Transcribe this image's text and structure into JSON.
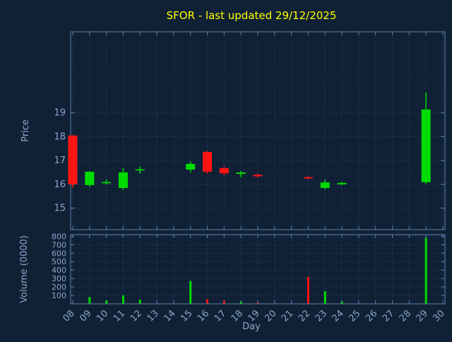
{
  "title": "SFOR - last updated 29/12/2025",
  "colors": {
    "background": "#102136",
    "grid": "#2d4b6d",
    "axis": "#5b82ab",
    "text": "#8aa6c9",
    "title": "#ffff00",
    "up": "#00dc00",
    "down": "#ff1414"
  },
  "chart_data": {
    "type": "candlestick",
    "title": "SFOR - last updated 29/12/2025",
    "xlabel": "Day",
    "ylabel": "Price",
    "volume_ylabel": "Volume (0000)",
    "x_ticks": [
      "08",
      "09",
      "10",
      "11",
      "12",
      "13",
      "14",
      "15",
      "16",
      "17",
      "18",
      "19",
      "20",
      "21",
      "22",
      "23",
      "24",
      "25",
      "26",
      "27",
      "28",
      "29",
      "30"
    ],
    "price_ticks": [
      15,
      16,
      17,
      18,
      19
    ],
    "volume_ticks": [
      100,
      200,
      300,
      400,
      500,
      600,
      700,
      800
    ],
    "day_axis_range": [
      7.874,
      30.126
    ],
    "price_axis_range": [
      14.1,
      22.4
    ],
    "volume_axis_range": [
      0,
      820
    ],
    "grid": "dotted",
    "candles": [
      {
        "day": 8,
        "open": 18.05,
        "high": 18.05,
        "low": 15.85,
        "close": 16.0,
        "dir": "down"
      },
      {
        "day": 9,
        "open": 15.97,
        "high": 16.55,
        "low": 15.9,
        "close": 16.53,
        "dir": "up"
      },
      {
        "day": 10,
        "open": 16.05,
        "high": 16.2,
        "low": 16.0,
        "close": 16.1,
        "dir": "up"
      },
      {
        "day": 11,
        "open": 15.85,
        "high": 16.68,
        "low": 15.78,
        "close": 16.5,
        "dir": "up"
      },
      {
        "day": 12,
        "open": 16.58,
        "high": 16.75,
        "low": 16.45,
        "close": 16.63,
        "dir": "up"
      },
      {
        "day": 15,
        "open": 16.62,
        "high": 16.97,
        "low": 16.5,
        "close": 16.86,
        "dir": "up"
      },
      {
        "day": 16,
        "open": 17.36,
        "high": 17.4,
        "low": 16.44,
        "close": 16.53,
        "dir": "down"
      },
      {
        "day": 17,
        "open": 16.68,
        "high": 16.75,
        "low": 16.38,
        "close": 16.47,
        "dir": "down"
      },
      {
        "day": 18,
        "open": 16.44,
        "high": 16.56,
        "low": 16.3,
        "close": 16.5,
        "dir": "up"
      },
      {
        "day": 19,
        "open": 16.4,
        "high": 16.46,
        "low": 16.28,
        "close": 16.34,
        "dir": "down"
      },
      {
        "day": 22,
        "open": 16.3,
        "high": 16.34,
        "low": 16.22,
        "close": 16.25,
        "dir": "down"
      },
      {
        "day": 23,
        "open": 15.85,
        "high": 16.2,
        "low": 15.8,
        "close": 16.08,
        "dir": "up"
      },
      {
        "day": 24,
        "open": 16.0,
        "high": 16.1,
        "low": 15.97,
        "close": 16.06,
        "dir": "up"
      },
      {
        "day": 29,
        "open": 16.09,
        "high": 19.85,
        "low": 16.02,
        "close": 19.14,
        "dir": "up"
      }
    ],
    "volumes": [
      {
        "day": 9,
        "value": 80,
        "dir": "up"
      },
      {
        "day": 10,
        "value": 40,
        "dir": "up"
      },
      {
        "day": 11,
        "value": 100,
        "dir": "up"
      },
      {
        "day": 12,
        "value": 50,
        "dir": "up"
      },
      {
        "day": 15,
        "value": 270,
        "dir": "up"
      },
      {
        "day": 16,
        "value": 55,
        "dir": "down"
      },
      {
        "day": 17,
        "value": 35,
        "dir": "down"
      },
      {
        "day": 18,
        "value": 25,
        "dir": "up"
      },
      {
        "day": 19,
        "value": 15,
        "dir": "down"
      },
      {
        "day": 22,
        "value": 320,
        "dir": "down"
      },
      {
        "day": 23,
        "value": 150,
        "dir": "up"
      },
      {
        "day": 24,
        "value": 25,
        "dir": "up"
      },
      {
        "day": 29,
        "value": 780,
        "dir": "up"
      }
    ]
  }
}
